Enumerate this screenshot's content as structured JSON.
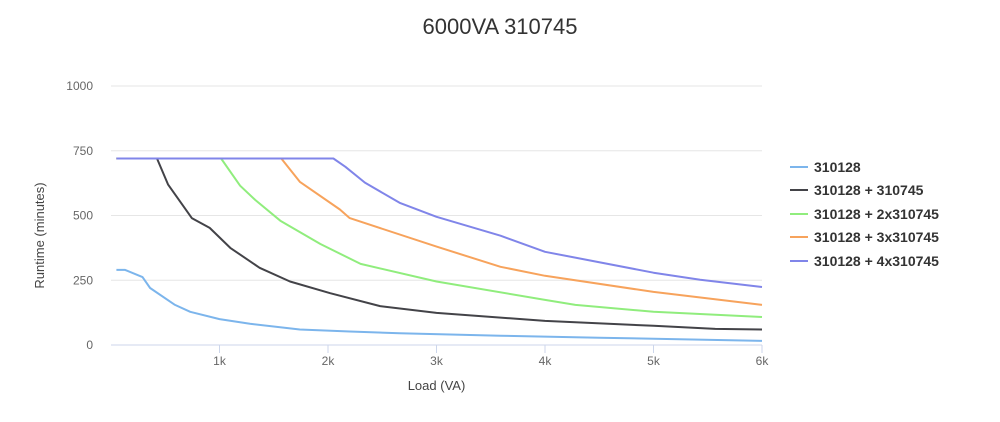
{
  "chart_data": {
    "type": "line",
    "title": "6000VA 310745",
    "xlabel": "Load (VA)",
    "ylabel": "Runtime (minutes)",
    "xlim": [
      0,
      6000
    ],
    "ylim": [
      0,
      1000
    ],
    "xticks": [
      {
        "v": 1000,
        "label": "1k"
      },
      {
        "v": 2000,
        "label": "2k"
      },
      {
        "v": 3000,
        "label": "3k"
      },
      {
        "v": 4000,
        "label": "4k"
      },
      {
        "v": 5000,
        "label": "5k"
      },
      {
        "v": 6000,
        "label": "6k"
      }
    ],
    "yticks": [
      {
        "v": 0,
        "label": "0"
      },
      {
        "v": 250,
        "label": "250"
      },
      {
        "v": 500,
        "label": "500"
      },
      {
        "v": 750,
        "label": "750"
      },
      {
        "v": 1000,
        "label": "1000"
      }
    ],
    "grid": true,
    "legend_position": "right",
    "series": [
      {
        "name": "310128",
        "color": "#7cb5ec",
        "x": [
          50,
          130,
          290,
          360,
          590,
          730,
          1000,
          1280,
          1740,
          2200,
          2660,
          3590,
          4500,
          6000
        ],
        "y": [
          290,
          290,
          262,
          220,
          155,
          128,
          100,
          82,
          60,
          52,
          45,
          36,
          28,
          16
        ]
      },
      {
        "name": "310128 + 310745",
        "color": "#434348",
        "x": [
          50,
          424,
          525,
          745,
          910,
          1100,
          1370,
          1650,
          2020,
          2480,
          3000,
          4000,
          5000,
          5570,
          6000
        ],
        "y": [
          720,
          720,
          620,
          490,
          452,
          375,
          298,
          245,
          200,
          150,
          124,
          93,
          74,
          62,
          60
        ]
      },
      {
        "name": "310128 + 2x310745",
        "color": "#90ed7d",
        "x": [
          50,
          1015,
          1190,
          1330,
          1560,
          1930,
          2300,
          3000,
          4000,
          4280,
          5000,
          6000
        ],
        "y": [
          720,
          720,
          615,
          560,
          480,
          390,
          313,
          245,
          174,
          155,
          128,
          108
        ]
      },
      {
        "name": "310128 + 3x310745",
        "color": "#f7a35c",
        "x": [
          50,
          1570,
          1740,
          2110,
          2200,
          3000,
          3590,
          4000,
          5000,
          6000
        ],
        "y": [
          720,
          720,
          630,
          523,
          490,
          380,
          302,
          267,
          205,
          155
        ]
      },
      {
        "name": "310128 + 4x310745",
        "color": "#8085e9",
        "x": [
          50,
          2050,
          2160,
          2340,
          2660,
          3000,
          3590,
          4000,
          5000,
          5430,
          6000
        ],
        "y": [
          720,
          720,
          688,
          627,
          549,
          495,
          422,
          360,
          279,
          252,
          224
        ]
      }
    ]
  }
}
